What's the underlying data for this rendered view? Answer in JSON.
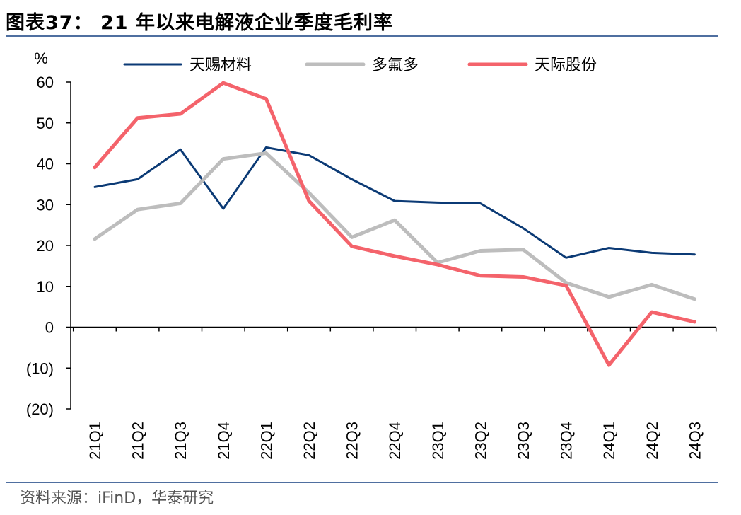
{
  "title": "图表37：  21 年以来电解液企业季度毛利率",
  "source": "资料来源：iFinD，华泰研究",
  "chart_data": {
    "type": "line",
    "ylabel": "%",
    "ylim": [
      -20,
      60
    ],
    "yticks": [
      60,
      50,
      40,
      30,
      20,
      10,
      0,
      -10,
      -20
    ],
    "ytick_labels": [
      "60",
      "50",
      "40",
      "30",
      "20",
      "10",
      "0",
      "(10)",
      "(20)"
    ],
    "categories": [
      "21Q1",
      "21Q2",
      "21Q3",
      "21Q4",
      "22Q1",
      "22Q2",
      "22Q3",
      "22Q4",
      "23Q1",
      "23Q2",
      "23Q3",
      "23Q4",
      "24Q1",
      "24Q2",
      "24Q3"
    ],
    "legend_position": "top",
    "grid": false,
    "series": [
      {
        "name": "天赐材料",
        "color": "#0b3a75",
        "values": [
          34.3,
          36.2,
          43.5,
          29.0,
          44.0,
          42.1,
          36.2,
          30.9,
          30.5,
          30.3,
          24.2,
          17.0,
          19.4,
          18.2,
          17.8
        ]
      },
      {
        "name": "多氟多",
        "color": "#bdbdbd",
        "values": [
          21.6,
          28.8,
          30.3,
          41.2,
          42.6,
          32.9,
          22.0,
          26.2,
          15.8,
          18.7,
          19.0,
          10.9,
          7.4,
          10.4,
          6.9
        ]
      },
      {
        "name": "天际股份",
        "color": "#f4636b",
        "values": [
          39.1,
          51.2,
          52.2,
          59.8,
          55.9,
          30.9,
          19.8,
          17.4,
          15.3,
          12.6,
          12.3,
          10.2,
          -9.3,
          3.7,
          1.3
        ]
      }
    ]
  }
}
